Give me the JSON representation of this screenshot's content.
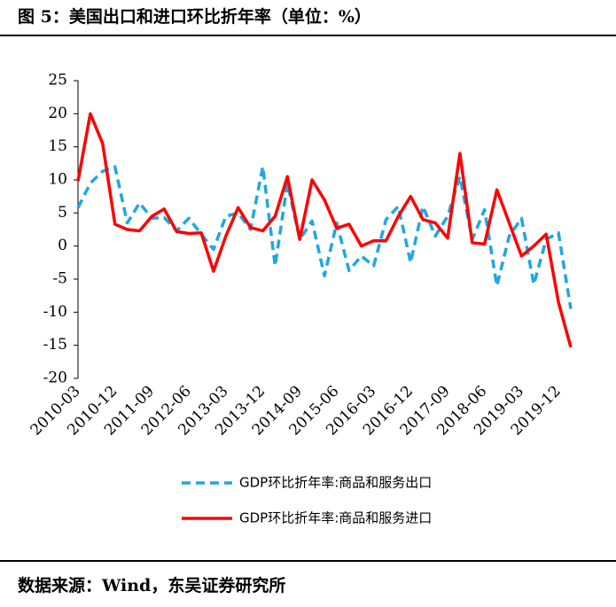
{
  "chart_data": {
    "type": "line",
    "title": "图 5：美国出口和进口环比折年率（单位：%）",
    "source": "数据来源：Wind，东吴证券研究所",
    "categories": [
      "2010-03",
      null,
      null,
      "2010-12",
      null,
      null,
      "2011-09",
      null,
      null,
      "2012-06",
      null,
      null,
      "2013-03",
      null,
      null,
      "2013-12",
      null,
      null,
      "2014-09",
      null,
      null,
      "2015-06",
      null,
      null,
      "2016-03",
      null,
      null,
      "2016-12",
      null,
      null,
      "2017-09",
      null,
      null,
      "2018-06",
      null,
      null,
      "2019-03",
      null,
      null,
      "2019-12",
      null
    ],
    "series": [
      {
        "name": "GDP环比折年率:商品和服务出口",
        "color": "#1ea7e4",
        "dashed": true,
        "values": [
          5.8,
          9.5,
          11.3,
          12,
          3.5,
          6.5,
          4.2,
          4.3,
          2.3,
          4.2,
          1.8,
          -0.5,
          4.5,
          5,
          2.5,
          12,
          -3,
          9.5,
          1,
          3.8,
          -4.5,
          3.5,
          -3.7,
          -1.5,
          -3,
          4,
          6,
          -2.5,
          6,
          1.5,
          4.5,
          10.5,
          1,
          5.5,
          -6,
          1.5,
          4.2,
          -5.8,
          1,
          2,
          -9.5
        ]
      },
      {
        "name": "GDP环比折年率:商品和服务进口",
        "color": "#ff0000",
        "dashed": false,
        "values": [
          9.8,
          20,
          15.5,
          3.3,
          2.5,
          2.3,
          4.5,
          5.6,
          2.2,
          1.9,
          2,
          -3.8,
          1.5,
          5.8,
          2.8,
          2.3,
          4.5,
          10.5,
          1,
          10,
          7,
          2.7,
          3.3,
          0,
          0.8,
          0.8,
          4.5,
          7.5,
          4,
          3.5,
          1.2,
          14,
          0.5,
          0.3,
          8.5,
          3.5,
          -1.5,
          0,
          1.8,
          -8.5,
          -15.3
        ]
      }
    ],
    "ylim": [
      -20,
      25
    ],
    "yticks": [
      25,
      20,
      15,
      10,
      5,
      0,
      -5,
      -10,
      -15,
      -20
    ],
    "grid": false
  }
}
